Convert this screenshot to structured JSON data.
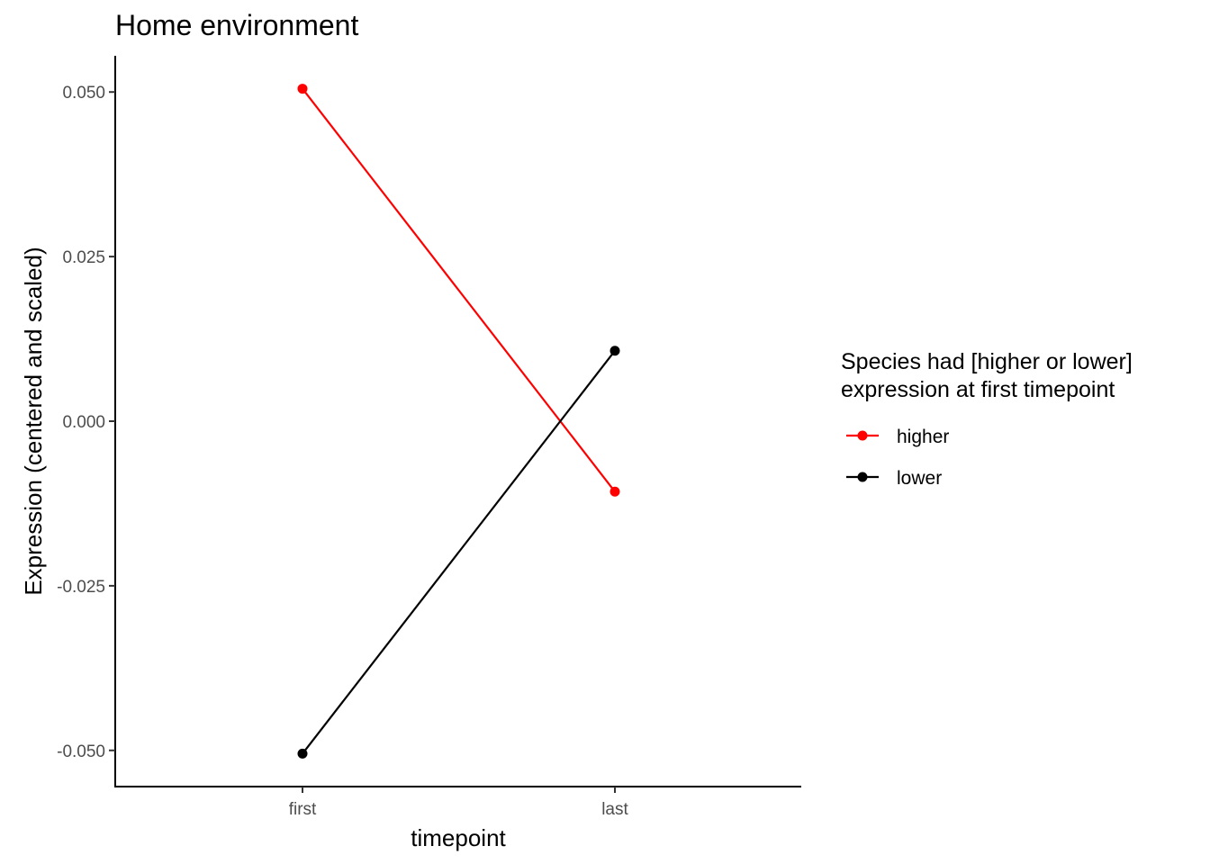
{
  "chart_data": {
    "type": "line",
    "title": "Home environment",
    "xlabel": "timepoint",
    "ylabel": "Expression (centered and scaled)",
    "categories": [
      "first",
      "last"
    ],
    "ylim": [
      -0.0555,
      0.0555
    ],
    "yticks": [
      0.05,
      0.025,
      0.0,
      -0.025,
      -0.05
    ],
    "ytick_labels": [
      "0.050",
      "0.025",
      "0.000",
      "-0.025",
      "-0.050"
    ],
    "series": [
      {
        "name": "higher",
        "color": "#ff0000",
        "values": [
          0.0505,
          -0.0107
        ]
      },
      {
        "name": "lower",
        "color": "#000000",
        "values": [
          -0.0505,
          0.0107
        ]
      }
    ],
    "legend": {
      "title_lines": [
        "Species had [higher or lower]",
        "expression at first timepoint"
      ],
      "position": "right"
    },
    "grid": false
  }
}
